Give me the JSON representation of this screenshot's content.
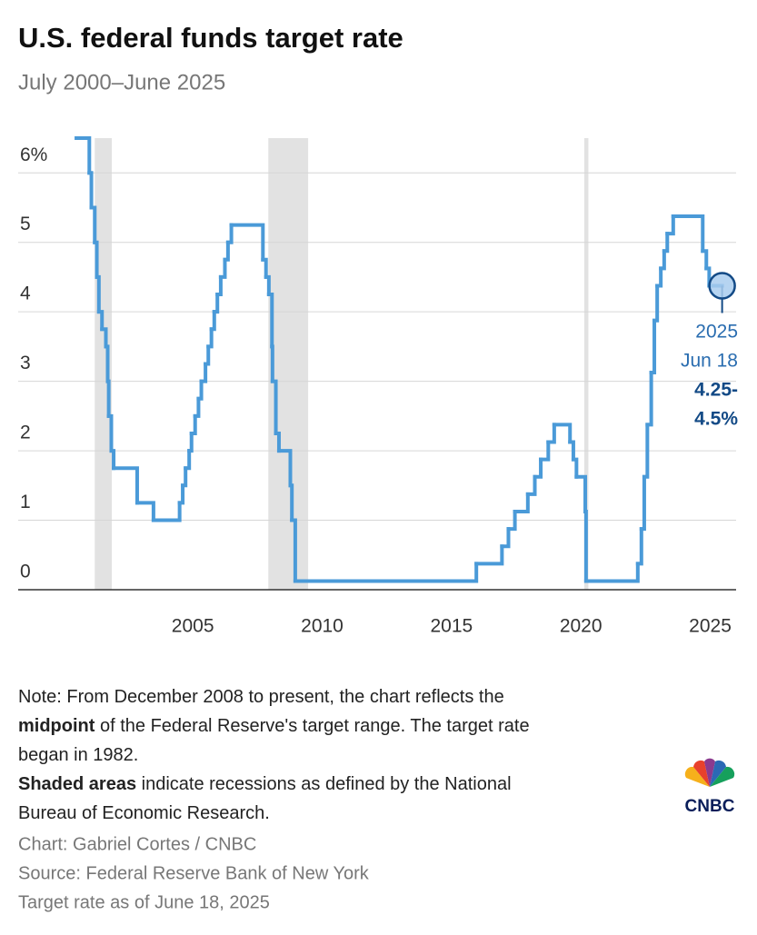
{
  "chart_data": {
    "type": "step",
    "title": "U.S. federal funds target rate",
    "subtitle": "July 2000–June 2025",
    "xlim": [
      1998.25,
      2026
    ],
    "xticks": [
      2005,
      2010,
      2015,
      2020,
      2025
    ],
    "ylim": [
      0,
      6.5
    ],
    "yticks": [
      0,
      1,
      2,
      3,
      4,
      5,
      {
        "value": 6,
        "label": "6%"
      }
    ],
    "grid": true,
    "recessions": [
      [
        2001.21,
        2001.87
      ],
      [
        2007.92,
        2009.46
      ],
      [
        2020.13,
        2020.29
      ]
    ],
    "recession_color": "#e2e2e2",
    "series": [
      {
        "color": "#4a9ad8",
        "x": [
          2000.5,
          2001.0,
          2001.08,
          2001.21,
          2001.29,
          2001.37,
          2001.49,
          2001.64,
          2001.71,
          2001.75,
          2001.85,
          2001.94,
          2002.85,
          2003.48,
          2004.49,
          2004.61,
          2004.72,
          2004.86,
          2004.95,
          2005.09,
          2005.22,
          2005.33,
          2005.49,
          2005.6,
          2005.72,
          2005.83,
          2005.95,
          2006.08,
          2006.24,
          2006.36,
          2006.49,
          2007.71,
          2007.83,
          2007.94,
          2008.06,
          2008.08,
          2008.21,
          2008.33,
          2008.77,
          2008.83,
          2008.96,
          2015.96,
          2016.95,
          2017.2,
          2017.45,
          2017.95,
          2018.22,
          2018.45,
          2018.74,
          2018.97,
          2019.58,
          2019.71,
          2019.83,
          2020.17,
          2020.2,
          2022.2,
          2022.34,
          2022.45,
          2022.57,
          2022.72,
          2022.84,
          2022.95,
          2023.09,
          2023.22,
          2023.34,
          2023.57,
          2024.71,
          2024.85,
          2024.96,
          2025.46
        ],
        "values": [
          6.5,
          6.0,
          5.5,
          5.0,
          4.5,
          4.0,
          3.75,
          3.5,
          3.0,
          2.5,
          2.0,
          1.75,
          1.25,
          1.0,
          1.25,
          1.5,
          1.75,
          2.0,
          2.25,
          2.5,
          2.75,
          3.0,
          3.25,
          3.5,
          3.75,
          4.0,
          4.25,
          4.5,
          4.75,
          5.0,
          5.25,
          4.75,
          4.5,
          4.25,
          3.5,
          3.0,
          2.25,
          2.0,
          1.5,
          1.0,
          0.125,
          0.375,
          0.625,
          0.875,
          1.125,
          1.375,
          1.625,
          1.875,
          2.125,
          2.375,
          2.125,
          1.875,
          1.625,
          1.125,
          0.125,
          0.375,
          0.875,
          1.625,
          2.375,
          3.125,
          3.875,
          4.375,
          4.625,
          4.875,
          5.125,
          5.375,
          4.875,
          4.625,
          4.375,
          4.375
        ]
      }
    ],
    "annotation": {
      "lines": [
        "2025",
        "Jun 18",
        "4.25-",
        "4.5%"
      ],
      "bold_from": 2,
      "color": "#2a6db0",
      "bold_color": "#134a86"
    },
    "note": [
      [
        {
          "text": "Note: From December 2008 to present, the chart reflects the",
          "bold": false
        }
      ],
      [
        {
          "text": "midpoint",
          "bold": true
        },
        {
          "text": " of the Federal Reserve's target range. The target rate",
          "bold": false
        }
      ],
      [
        {
          "text": "began in 1982.",
          "bold": false
        }
      ],
      [
        {
          "text": "Shaded areas",
          "bold": true
        },
        {
          "text": " indicate recessions as defined by the National",
          "bold": false
        }
      ],
      [
        {
          "text": "Bureau of Economic Research.",
          "bold": false
        }
      ]
    ],
    "credits": [
      "Chart: Gabriel Cortes / CNBC",
      "Source: Federal Reserve Bank of New York",
      "Target rate as of June 18, 2025"
    ],
    "logo": "CNBC"
  }
}
